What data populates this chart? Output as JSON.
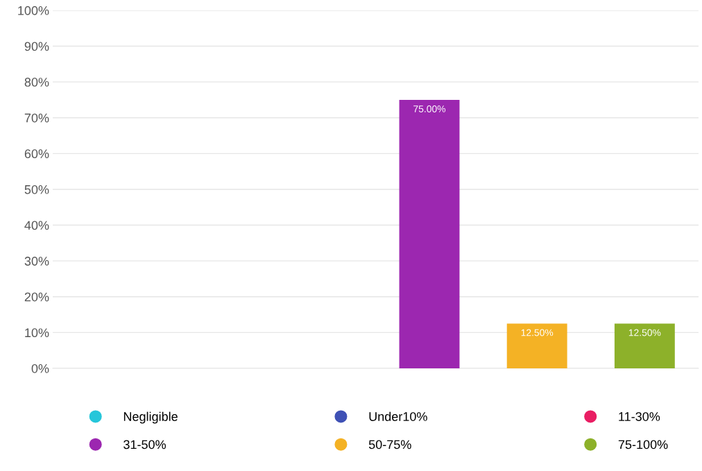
{
  "chart_data": {
    "type": "bar",
    "stacked": true,
    "categories": [
      null,
      null,
      null,
      null,
      null,
      null
    ],
    "series": [
      {
        "name": "Negligible",
        "color": "#26c6da",
        "values": [
          0,
          null,
          null,
          null,
          null,
          null
        ]
      },
      {
        "name": "Under10%",
        "color": "#3f51b5",
        "values": [
          null,
          0,
          null,
          null,
          null,
          null
        ]
      },
      {
        "name": "11-30%",
        "color": "#e91e63",
        "values": [
          null,
          null,
          0,
          null,
          null,
          null
        ]
      },
      {
        "name": "31-50%",
        "color": "#9c27b0",
        "values": [
          null,
          null,
          null,
          75,
          null,
          null
        ],
        "value_labels": [
          null,
          null,
          null,
          "75.00%",
          null,
          null
        ]
      },
      {
        "name": "50-75%",
        "color": "#f4b225",
        "values": [
          null,
          null,
          null,
          null,
          12.5,
          null
        ],
        "value_labels": [
          null,
          null,
          null,
          null,
          "12.50%",
          null
        ]
      },
      {
        "name": "75-100%",
        "color": "#8db12a",
        "values": [
          null,
          null,
          null,
          null,
          null,
          12.5
        ],
        "value_labels": [
          null,
          null,
          null,
          null,
          null,
          "12.50%"
        ]
      }
    ],
    "ylim": [
      0,
      100
    ],
    "yticks": [
      {
        "value": 0,
        "label": "0%"
      },
      {
        "value": 10,
        "label": "10%"
      },
      {
        "value": 20,
        "label": "20%"
      },
      {
        "value": 30,
        "label": "30%"
      },
      {
        "value": 40,
        "label": "40%"
      },
      {
        "value": 50,
        "label": "50%"
      },
      {
        "value": 60,
        "label": "60%"
      },
      {
        "value": 70,
        "label": "70%"
      },
      {
        "value": 80,
        "label": "80%"
      },
      {
        "value": 90,
        "label": "90%"
      },
      {
        "value": 100,
        "label": "100%"
      }
    ],
    "grid": "y",
    "legend": "bottom",
    "tick_labels": "y"
  }
}
